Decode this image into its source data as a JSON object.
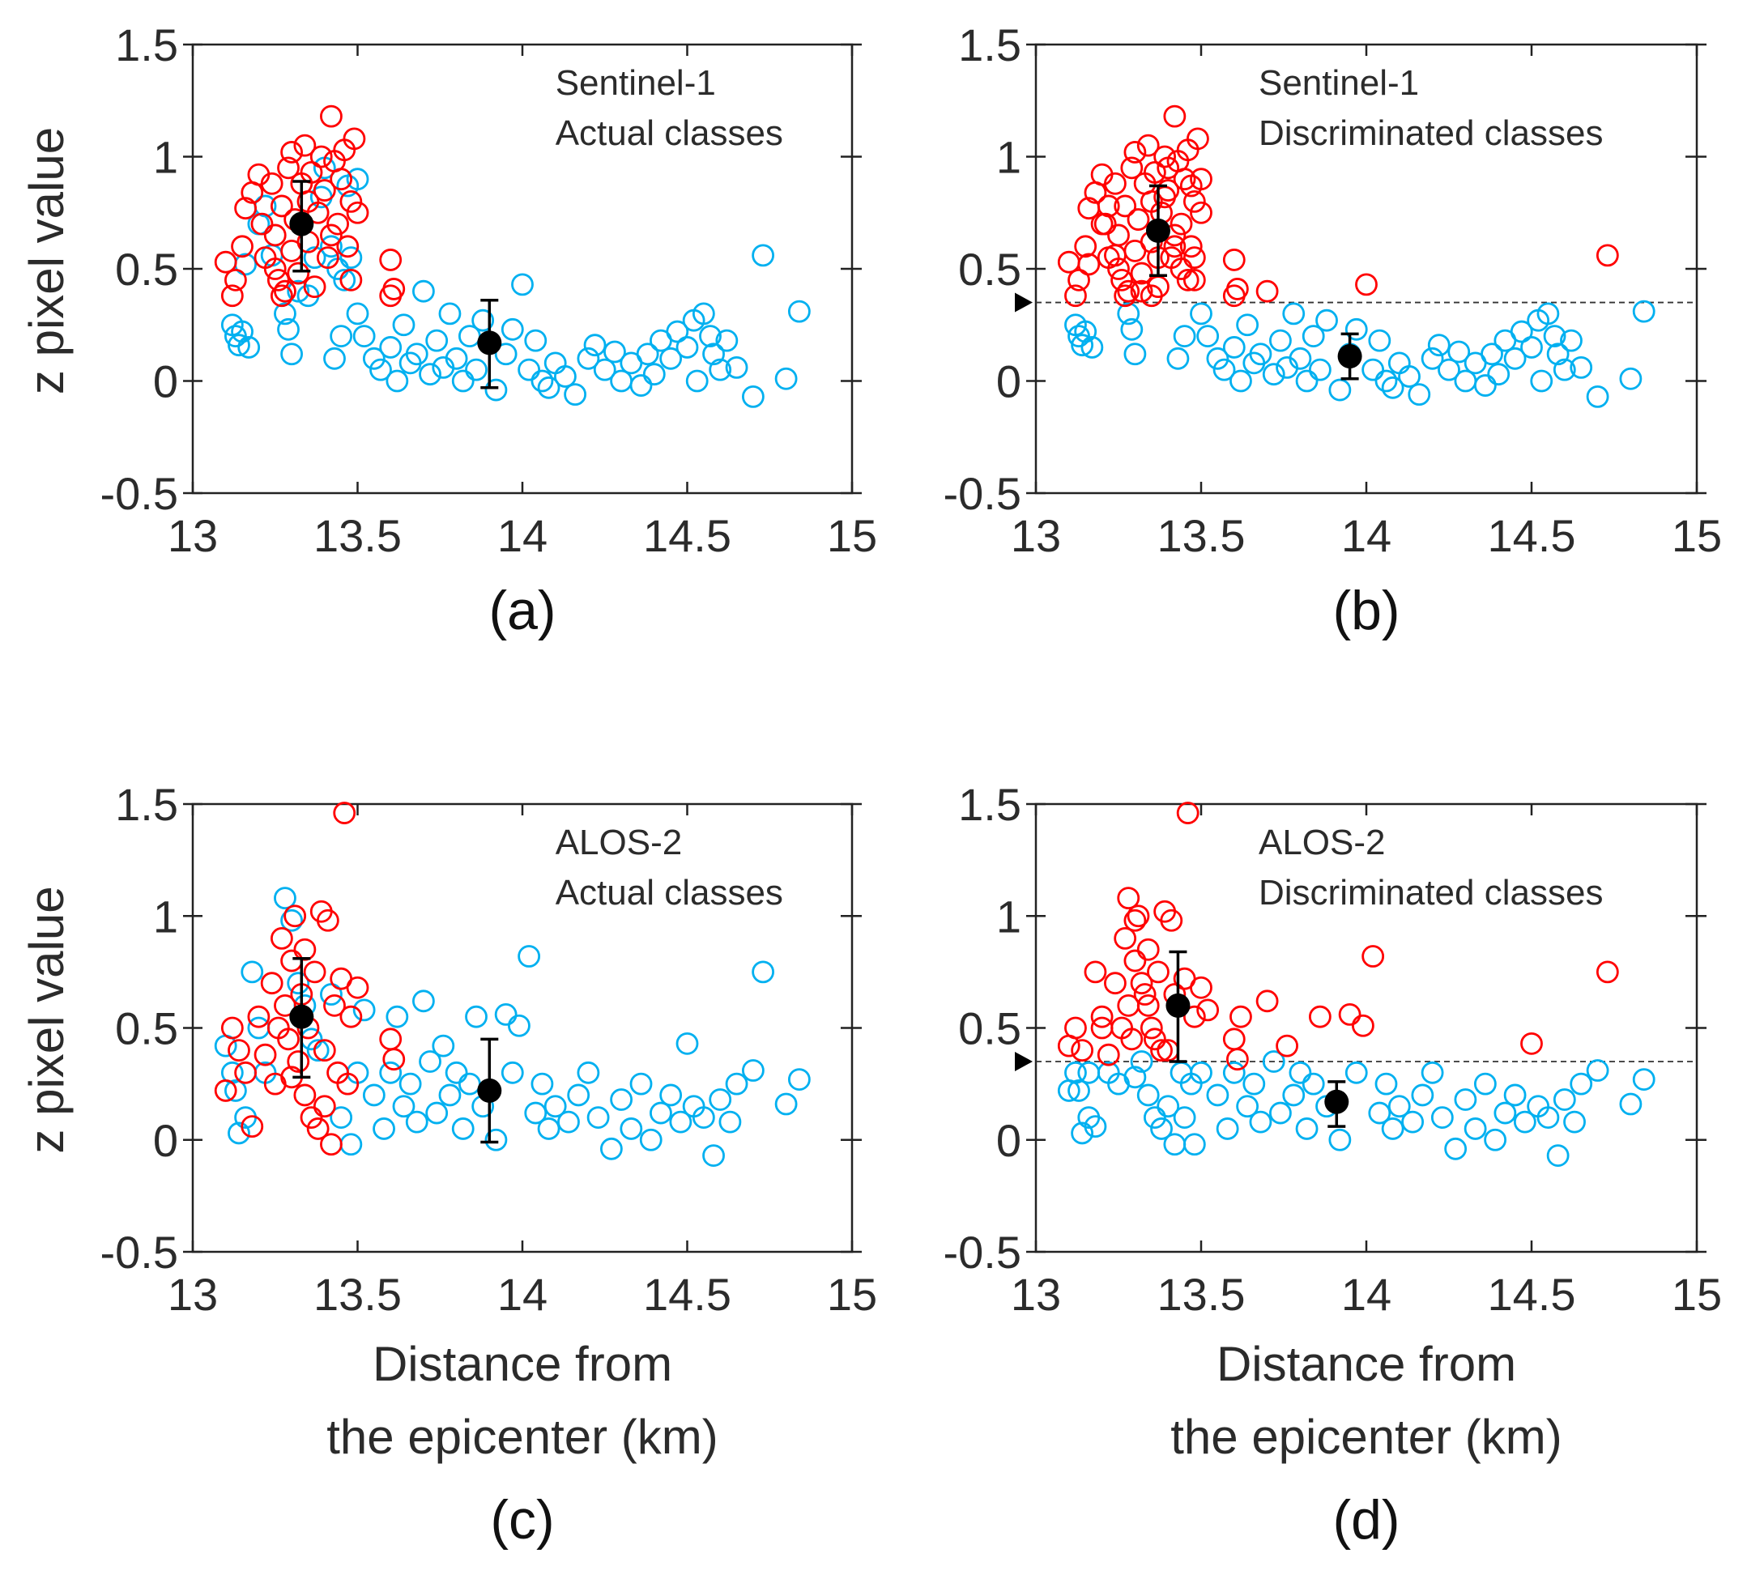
{
  "chart_data": {
    "type": "scatter",
    "colors": {
      "landslide": "#ff0000",
      "non_landslide": "#00b0f0",
      "mean": "#000000"
    },
    "xlim": [
      13,
      15
    ],
    "ylim": [
      -0.5,
      1.5
    ],
    "xticks": [
      13,
      13.5,
      14,
      14.5,
      15
    ],
    "xtick_labels": [
      "13",
      "13.5",
      "14",
      "14.5",
      "15"
    ],
    "yticks": [
      -0.5,
      0,
      0.5,
      1,
      1.5
    ],
    "ytick_labels": [
      "-0.5",
      "0",
      "0.5",
      "1",
      "1.5"
    ],
    "ylabel": "z pixel value",
    "xlabel_lines": [
      "Distance from",
      "the epicenter (km)"
    ],
    "datasets": {
      "sentinel1": {
        "red": [
          [
            13.1,
            0.53
          ],
          [
            13.12,
            0.38
          ],
          [
            13.13,
            0.45
          ],
          [
            13.15,
            0.6
          ],
          [
            13.16,
            0.77
          ],
          [
            13.18,
            0.84
          ],
          [
            13.2,
            0.92
          ],
          [
            13.21,
            0.7
          ],
          [
            13.22,
            0.55
          ],
          [
            13.24,
            0.88
          ],
          [
            13.25,
            0.65
          ],
          [
            13.26,
            0.45
          ],
          [
            13.27,
            0.78
          ],
          [
            13.28,
            0.4
          ],
          [
            13.29,
            0.95
          ],
          [
            13.3,
            0.58
          ],
          [
            13.3,
            1.02
          ],
          [
            13.31,
            0.72
          ],
          [
            13.32,
            0.48
          ],
          [
            13.33,
            0.88
          ],
          [
            13.34,
            1.05
          ],
          [
            13.35,
            0.62
          ],
          [
            13.36,
            0.93
          ],
          [
            13.37,
            0.42
          ],
          [
            13.38,
            0.75
          ],
          [
            13.39,
            1.0
          ],
          [
            13.4,
            0.85
          ],
          [
            13.41,
            0.55
          ],
          [
            13.42,
            1.18
          ],
          [
            13.43,
            0.98
          ],
          [
            13.44,
            0.7
          ],
          [
            13.45,
            0.9
          ],
          [
            13.46,
            1.03
          ],
          [
            13.47,
            0.6
          ],
          [
            13.48,
            0.8
          ],
          [
            13.49,
            1.08
          ],
          [
            13.5,
            0.75
          ],
          [
            13.48,
            0.45
          ],
          [
            13.6,
            0.54
          ],
          [
            13.61,
            0.41
          ],
          [
            13.6,
            0.38
          ],
          [
            13.27,
            0.38
          ],
          [
            13.25,
            0.5
          ],
          [
            13.35,
            0.8
          ],
          [
            13.42,
            0.65
          ]
        ],
        "blue": [
          [
            13.12,
            0.25
          ],
          [
            13.13,
            0.2
          ],
          [
            13.14,
            0.16
          ],
          [
            13.15,
            0.22
          ],
          [
            13.17,
            0.15
          ],
          [
            13.16,
            0.52
          ],
          [
            13.2,
            0.7
          ],
          [
            13.22,
            0.78
          ],
          [
            13.24,
            0.56
          ],
          [
            13.28,
            0.3
          ],
          [
            13.29,
            0.23
          ],
          [
            13.3,
            0.12
          ],
          [
            13.32,
            0.4
          ],
          [
            13.35,
            0.38
          ],
          [
            13.37,
            0.55
          ],
          [
            13.39,
            0.82
          ],
          [
            13.4,
            0.95
          ],
          [
            13.42,
            0.6
          ],
          [
            13.44,
            0.5
          ],
          [
            13.46,
            0.45
          ],
          [
            13.48,
            0.55
          ],
          [
            13.5,
            0.9
          ],
          [
            13.47,
            0.87
          ],
          [
            13.43,
            0.1
          ],
          [
            13.45,
            0.2
          ],
          [
            13.5,
            0.3
          ],
          [
            13.52,
            0.2
          ],
          [
            13.55,
            0.1
          ],
          [
            13.57,
            0.05
          ],
          [
            13.6,
            0.15
          ],
          [
            13.62,
            0.0
          ],
          [
            13.64,
            0.25
          ],
          [
            13.66,
            0.08
          ],
          [
            13.68,
            0.12
          ],
          [
            13.7,
            0.4
          ],
          [
            13.72,
            0.03
          ],
          [
            13.74,
            0.18
          ],
          [
            13.76,
            0.06
          ],
          [
            13.78,
            0.3
          ],
          [
            13.8,
            0.1
          ],
          [
            13.82,
            0.0
          ],
          [
            13.84,
            0.2
          ],
          [
            13.86,
            0.05
          ],
          [
            13.88,
            0.27
          ],
          [
            13.92,
            -0.04
          ],
          [
            13.95,
            0.12
          ],
          [
            13.97,
            0.23
          ],
          [
            14.0,
            0.43
          ],
          [
            14.02,
            0.05
          ],
          [
            14.04,
            0.18
          ],
          [
            14.06,
            0.0
          ],
          [
            14.08,
            -0.03
          ],
          [
            14.1,
            0.08
          ],
          [
            14.13,
            0.02
          ],
          [
            14.16,
            -0.06
          ],
          [
            14.2,
            0.1
          ],
          [
            14.22,
            0.16
          ],
          [
            14.25,
            0.05
          ],
          [
            14.28,
            0.13
          ],
          [
            14.3,
            0.0
          ],
          [
            14.33,
            0.08
          ],
          [
            14.36,
            -0.02
          ],
          [
            14.38,
            0.12
          ],
          [
            14.4,
            0.03
          ],
          [
            14.42,
            0.18
          ],
          [
            14.45,
            0.1
          ],
          [
            14.47,
            0.22
          ],
          [
            14.5,
            0.15
          ],
          [
            14.52,
            0.27
          ],
          [
            14.55,
            0.3
          ],
          [
            14.57,
            0.2
          ],
          [
            14.58,
            0.12
          ],
          [
            14.6,
            0.05
          ],
          [
            14.62,
            0.18
          ],
          [
            14.65,
            0.06
          ],
          [
            14.7,
            -0.07
          ],
          [
            14.73,
            0.56
          ],
          [
            14.8,
            0.01
          ],
          [
            14.84,
            0.31
          ],
          [
            14.53,
            0.0
          ]
        ]
      },
      "alos2": {
        "red": [
          [
            13.1,
            0.22
          ],
          [
            13.12,
            0.5
          ],
          [
            13.14,
            0.4
          ],
          [
            13.16,
            0.3
          ],
          [
            13.18,
            0.06
          ],
          [
            13.2,
            0.55
          ],
          [
            13.22,
            0.38
          ],
          [
            13.24,
            0.7
          ],
          [
            13.25,
            0.25
          ],
          [
            13.27,
            0.9
          ],
          [
            13.28,
            0.6
          ],
          [
            13.29,
            0.45
          ],
          [
            13.3,
            0.8
          ],
          [
            13.31,
            1.0
          ],
          [
            13.32,
            0.35
          ],
          [
            13.33,
            0.65
          ],
          [
            13.34,
            0.2
          ],
          [
            13.35,
            0.5
          ],
          [
            13.36,
            0.1
          ],
          [
            13.37,
            0.75
          ],
          [
            13.38,
            0.05
          ],
          [
            13.39,
            1.02
          ],
          [
            13.4,
            0.4
          ],
          [
            13.41,
            0.98
          ],
          [
            13.42,
            -0.02
          ],
          [
            13.43,
            0.6
          ],
          [
            13.44,
            0.3
          ],
          [
            13.45,
            0.72
          ],
          [
            13.46,
            1.46
          ],
          [
            13.47,
            0.25
          ],
          [
            13.48,
            0.55
          ],
          [
            13.5,
            0.68
          ],
          [
            13.6,
            0.45
          ],
          [
            13.61,
            0.36
          ],
          [
            13.26,
            0.5
          ],
          [
            13.3,
            0.28
          ],
          [
            13.34,
            0.85
          ],
          [
            13.4,
            0.15
          ]
        ],
        "blue": [
          [
            13.1,
            0.42
          ],
          [
            13.12,
            0.3
          ],
          [
            13.13,
            0.22
          ],
          [
            13.14,
            0.03
          ],
          [
            13.16,
            0.1
          ],
          [
            13.18,
            0.75
          ],
          [
            13.2,
            0.5
          ],
          [
            13.22,
            0.3
          ],
          [
            13.28,
            1.08
          ],
          [
            13.3,
            0.98
          ],
          [
            13.32,
            0.7
          ],
          [
            13.34,
            0.6
          ],
          [
            13.36,
            0.45
          ],
          [
            13.38,
            0.4
          ],
          [
            13.42,
            0.65
          ],
          [
            13.45,
            0.1
          ],
          [
            13.48,
            -0.02
          ],
          [
            13.5,
            0.3
          ],
          [
            13.52,
            0.58
          ],
          [
            13.55,
            0.2
          ],
          [
            13.58,
            0.05
          ],
          [
            13.6,
            0.3
          ],
          [
            13.62,
            0.55
          ],
          [
            13.64,
            0.15
          ],
          [
            13.66,
            0.25
          ],
          [
            13.68,
            0.08
          ],
          [
            13.7,
            0.62
          ],
          [
            13.72,
            0.35
          ],
          [
            13.74,
            0.12
          ],
          [
            13.76,
            0.42
          ],
          [
            13.78,
            0.2
          ],
          [
            13.8,
            0.3
          ],
          [
            13.82,
            0.05
          ],
          [
            13.84,
            0.25
          ],
          [
            13.86,
            0.55
          ],
          [
            13.88,
            0.15
          ],
          [
            13.92,
            0.0
          ],
          [
            13.95,
            0.56
          ],
          [
            13.97,
            0.3
          ],
          [
            13.99,
            0.51
          ],
          [
            14.02,
            0.82
          ],
          [
            14.04,
            0.12
          ],
          [
            14.06,
            0.25
          ],
          [
            14.08,
            0.05
          ],
          [
            14.1,
            0.15
          ],
          [
            14.14,
            0.08
          ],
          [
            14.17,
            0.2
          ],
          [
            14.2,
            0.3
          ],
          [
            14.23,
            0.1
          ],
          [
            14.27,
            -0.04
          ],
          [
            14.3,
            0.18
          ],
          [
            14.33,
            0.05
          ],
          [
            14.36,
            0.25
          ],
          [
            14.39,
            0.0
          ],
          [
            14.42,
            0.12
          ],
          [
            14.45,
            0.2
          ],
          [
            14.48,
            0.08
          ],
          [
            14.5,
            0.43
          ],
          [
            14.52,
            0.15
          ],
          [
            14.55,
            0.1
          ],
          [
            14.58,
            -0.07
          ],
          [
            14.6,
            0.18
          ],
          [
            14.63,
            0.08
          ],
          [
            14.65,
            0.25
          ],
          [
            14.7,
            0.31
          ],
          [
            14.73,
            0.75
          ],
          [
            14.8,
            0.16
          ],
          [
            14.84,
            0.27
          ]
        ]
      }
    },
    "panels": [
      {
        "id": "a",
        "label": "(a)",
        "dataset": "sentinel1",
        "classification": "actual",
        "annotation": [
          "Sentinel-1",
          "Actual classes"
        ],
        "means": [
          {
            "x": 13.33,
            "y": 0.7,
            "lo": 0.49,
            "hi": 0.89
          },
          {
            "x": 13.9,
            "y": 0.17,
            "lo": -0.03,
            "hi": 0.36
          }
        ],
        "threshold": null
      },
      {
        "id": "b",
        "label": "(b)",
        "dataset": "sentinel1",
        "classification": "threshold",
        "annotation": [
          "Sentinel-1",
          "Discriminated classes"
        ],
        "means": [
          {
            "x": 13.37,
            "y": 0.67,
            "lo": 0.47,
            "hi": 0.87
          },
          {
            "x": 13.95,
            "y": 0.11,
            "lo": 0.01,
            "hi": 0.21
          }
        ],
        "threshold": 0.35
      },
      {
        "id": "c",
        "label": "(c)",
        "dataset": "alos2",
        "classification": "actual",
        "annotation": [
          "ALOS-2",
          "Actual classes"
        ],
        "means": [
          {
            "x": 13.33,
            "y": 0.55,
            "lo": 0.28,
            "hi": 0.81
          },
          {
            "x": 13.9,
            "y": 0.22,
            "lo": -0.01,
            "hi": 0.45
          }
        ],
        "threshold": null
      },
      {
        "id": "d",
        "label": "(d)",
        "dataset": "alos2",
        "classification": "threshold",
        "annotation": [
          "ALOS-2",
          "Discriminated classes"
        ],
        "means": [
          {
            "x": 13.43,
            "y": 0.6,
            "lo": 0.35,
            "hi": 0.84
          },
          {
            "x": 13.91,
            "y": 0.17,
            "lo": 0.06,
            "hi": 0.26
          }
        ],
        "threshold": 0.35
      }
    ]
  }
}
